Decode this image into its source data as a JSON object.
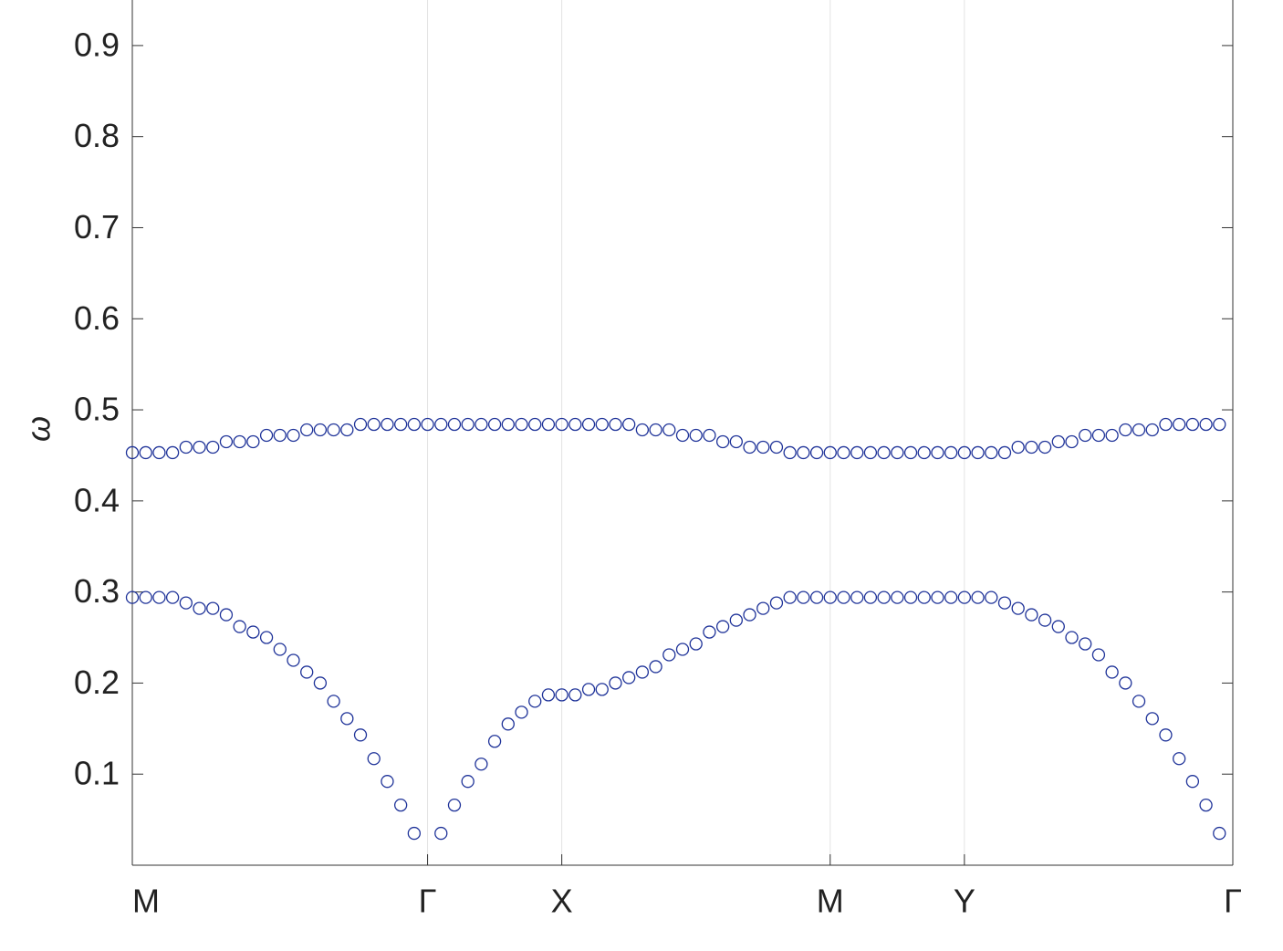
{
  "chart_data": {
    "type": "scatter",
    "ylabel": "ω",
    "x": [
      0,
      1,
      2,
      3,
      4,
      5,
      6,
      7,
      8,
      9,
      10,
      11,
      12,
      13,
      14,
      15,
      16,
      17,
      18,
      19,
      20,
      21,
      22,
      23,
      24,
      25,
      26,
      27,
      28,
      29,
      30,
      31,
      32,
      33,
      34,
      35,
      36,
      37,
      38,
      39,
      40,
      41,
      42,
      43,
      44,
      45,
      46,
      47,
      48,
      49,
      50,
      51,
      52,
      53,
      54,
      55,
      56,
      57,
      58,
      59,
      60,
      61,
      62,
      63,
      64,
      65,
      66,
      67,
      68,
      69,
      70,
      71,
      72,
      73,
      74,
      75,
      76,
      77,
      78,
      79,
      80,
      81
    ],
    "series": [
      {
        "color": "#1f3399",
        "values": [
          0.453,
          0.453,
          0.453,
          0.453,
          0.459,
          0.459,
          0.459,
          0.465,
          0.465,
          0.465,
          0.472,
          0.472,
          0.472,
          0.478,
          0.478,
          0.478,
          0.478,
          0.484,
          0.484,
          0.484,
          0.484,
          0.484,
          0.484,
          0.484,
          0.484,
          0.484,
          0.484,
          0.484,
          0.484,
          0.484,
          0.484,
          0.484,
          0.484,
          0.484,
          0.484,
          0.484,
          0.484,
          0.484,
          0.478,
          0.478,
          0.478,
          0.472,
          0.472,
          0.472,
          0.465,
          0.465,
          0.459,
          0.459,
          0.459,
          0.453,
          0.453,
          0.453,
          0.453,
          0.453,
          0.453,
          0.453,
          0.453,
          0.453,
          0.453,
          0.453,
          0.453,
          0.453,
          0.453,
          0.453,
          0.453,
          0.453,
          0.459,
          0.459,
          0.459,
          0.465,
          0.465,
          0.472,
          0.472,
          0.472,
          0.478,
          0.478,
          0.478,
          0.484,
          0.484,
          0.484,
          0.484,
          0.484
        ]
      },
      {
        "color": "#1f3399",
        "values": [
          0.294,
          0.294,
          0.294,
          0.294,
          0.288,
          0.282,
          0.282,
          0.275,
          0.262,
          0.256,
          0.25,
          0.237,
          0.225,
          0.212,
          0.2,
          0.18,
          0.161,
          0.143,
          0.117,
          0.092,
          0.066,
          0.035,
          null,
          0.035,
          0.066,
          0.092,
          0.111,
          0.136,
          0.155,
          0.168,
          0.18,
          0.187,
          0.187,
          0.187,
          0.193,
          0.193,
          0.2,
          0.206,
          0.212,
          0.218,
          0.231,
          0.237,
          0.243,
          0.256,
          0.262,
          0.269,
          0.275,
          0.282,
          0.288,
          0.294,
          0.294,
          0.294,
          0.294,
          0.294,
          0.294,
          0.294,
          0.294,
          0.294,
          0.294,
          0.294,
          0.294,
          0.294,
          0.294,
          0.294,
          0.294,
          0.288,
          0.282,
          0.275,
          0.269,
          0.262,
          0.25,
          0.243,
          0.231,
          0.212,
          0.2,
          0.18,
          0.161,
          0.143,
          0.117,
          0.092,
          0.066,
          0.035
        ]
      }
    ],
    "xlim": [
      0,
      82
    ],
    "xticks": [
      {
        "value": 0,
        "label": "M"
      },
      {
        "value": 22,
        "label": "Γ"
      },
      {
        "value": 32,
        "label": "X"
      },
      {
        "value": 52,
        "label": "M"
      },
      {
        "value": 62,
        "label": "Y"
      },
      {
        "value": 82,
        "label": "Γ"
      }
    ],
    "ylim": [
      0,
      0.95
    ],
    "yticks": [
      0.1,
      0.2,
      0.3,
      0.4,
      0.5,
      0.6,
      0.7,
      0.8,
      0.9
    ],
    "xgrid": true
  }
}
